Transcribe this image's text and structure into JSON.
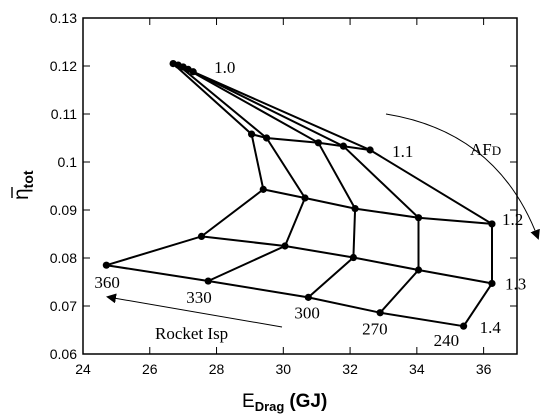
{
  "chart_data": {
    "type": "line",
    "xlabel": {
      "main": "E",
      "sub": "Drag",
      "unit": "(GJ)"
    },
    "ylabel": {
      "main": "η",
      "sub": "tot"
    },
    "xlim": [
      24,
      37
    ],
    "ylim": [
      0.06,
      0.13
    ],
    "x_ticks": [
      "24",
      "26",
      "28",
      "30",
      "32",
      "34",
      "36"
    ],
    "x_tick_values": [
      24,
      26,
      28,
      30,
      32,
      34,
      36
    ],
    "y_ticks": [
      "0.06",
      "0.07",
      "0.08",
      "0.09",
      "0.1",
      "0.11",
      "0.12",
      "0.13"
    ],
    "y_tick_values": [
      0.06,
      0.07,
      0.08,
      0.09,
      0.1,
      0.11,
      0.12,
      0.13
    ],
    "isp_labels": [
      "360",
      "330",
      "300",
      "270",
      "240"
    ],
    "afd_labels": [
      "1.0",
      "1.1",
      "1.2",
      "1.3",
      "1.4"
    ],
    "grid": [
      [
        [
          26.7,
          0.1205
        ],
        [
          29.05,
          0.1058
        ],
        [
          29.4,
          0.0943
        ],
        [
          27.55,
          0.0845
        ],
        [
          24.7,
          0.0785
        ]
      ],
      [
        [
          26.85,
          0.1202
        ],
        [
          29.5,
          0.105
        ],
        [
          30.65,
          0.0925
        ],
        [
          30.05,
          0.0825
        ],
        [
          27.75,
          0.0752
        ]
      ],
      [
        [
          27.0,
          0.1198
        ],
        [
          31.05,
          0.104
        ],
        [
          32.15,
          0.0903
        ],
        [
          32.1,
          0.0801
        ],
        [
          30.75,
          0.0718
        ]
      ],
      [
        [
          27.15,
          0.1193
        ],
        [
          31.8,
          0.1033
        ],
        [
          34.05,
          0.0884
        ],
        [
          34.05,
          0.0775
        ],
        [
          32.9,
          0.0686
        ]
      ],
      [
        [
          27.3,
          0.1188
        ],
        [
          32.6,
          0.1025
        ],
        [
          36.25,
          0.0871
        ],
        [
          36.25,
          0.0747
        ],
        [
          35.4,
          0.0658
        ]
      ]
    ],
    "annotations": {
      "afd": "AF",
      "afd_sub": "D",
      "rocket_isp": "Rocket Isp"
    }
  }
}
